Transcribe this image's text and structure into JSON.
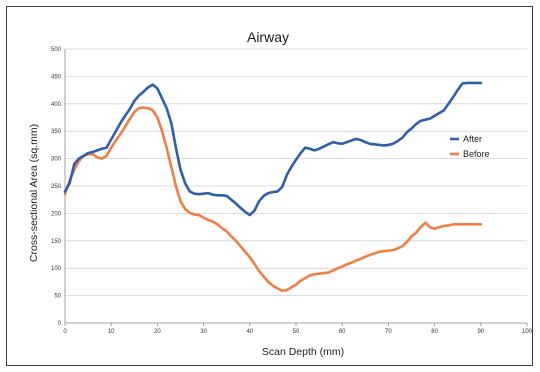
{
  "chart_data": {
    "type": "line",
    "title": "Airway",
    "xlabel": "Scan Depth (mm)",
    "ylabel": "Cross-sectional Area (sq.mm)",
    "xlim": [
      0,
      100
    ],
    "ylim": [
      0,
      500
    ],
    "xticks": [
      0,
      10,
      20,
      30,
      40,
      50,
      60,
      70,
      80,
      90,
      100
    ],
    "yticks": [
      0,
      50,
      100,
      150,
      200,
      250,
      300,
      350,
      400,
      450,
      500
    ],
    "grid": "horizontal",
    "legend_position": "right",
    "series": [
      {
        "name": "After",
        "color": "#2e5fa8",
        "x": [
          0,
          1,
          2,
          3,
          4,
          5,
          6,
          7,
          8,
          9,
          10,
          11,
          12,
          13,
          14,
          15,
          16,
          17,
          18,
          19,
          20,
          21,
          22,
          23,
          24,
          25,
          26,
          27,
          28,
          29,
          30,
          31,
          32,
          33,
          34,
          35,
          36,
          37,
          38,
          39,
          40,
          41,
          42,
          43,
          44,
          45,
          46,
          47,
          48,
          49,
          50,
          51,
          52,
          53,
          54,
          55,
          56,
          57,
          58,
          59,
          60,
          61,
          62,
          63,
          64,
          65,
          66,
          67,
          68,
          69,
          70,
          71,
          72,
          73,
          74,
          75,
          76,
          77,
          78,
          79,
          80,
          81,
          82,
          83,
          84,
          85,
          86,
          87,
          88,
          89,
          90
        ],
        "y": [
          240,
          255,
          290,
          300,
          305,
          310,
          312,
          315,
          318,
          320,
          335,
          350,
          365,
          378,
          390,
          405,
          415,
          422,
          430,
          435,
          428,
          410,
          392,
          365,
          320,
          280,
          255,
          240,
          236,
          235,
          236,
          237,
          234,
          233,
          233,
          232,
          225,
          218,
          210,
          203,
          197,
          205,
          222,
          232,
          237,
          239,
          240,
          248,
          270,
          285,
          298,
          310,
          320,
          318,
          315,
          318,
          322,
          326,
          330,
          328,
          327,
          330,
          333,
          336,
          334,
          330,
          327,
          326,
          325,
          324,
          325,
          327,
          332,
          338,
          348,
          355,
          363,
          369,
          371,
          373,
          378,
          383,
          388,
          400,
          412,
          425,
          437,
          438,
          438,
          438,
          438
        ]
      },
      {
        "name": "Before",
        "color": "#f07e45",
        "x": [
          0,
          1,
          2,
          3,
          4,
          5,
          6,
          7,
          8,
          9,
          10,
          11,
          12,
          13,
          14,
          15,
          16,
          17,
          18,
          19,
          20,
          21,
          22,
          23,
          24,
          25,
          26,
          27,
          28,
          29,
          30,
          31,
          32,
          33,
          34,
          35,
          36,
          37,
          38,
          39,
          40,
          41,
          42,
          43,
          44,
          45,
          46,
          47,
          48,
          49,
          50,
          51,
          52,
          53,
          54,
          55,
          56,
          57,
          58,
          59,
          60,
          61,
          62,
          63,
          64,
          65,
          66,
          67,
          68,
          69,
          70,
          71,
          72,
          73,
          74,
          75,
          76,
          77,
          78,
          79,
          80,
          81,
          82,
          83,
          84,
          85,
          86,
          87,
          88,
          89,
          90
        ],
        "y": [
          235,
          260,
          280,
          295,
          305,
          308,
          308,
          302,
          300,
          305,
          320,
          333,
          345,
          358,
          372,
          385,
          392,
          393,
          392,
          388,
          375,
          350,
          320,
          285,
          250,
          222,
          208,
          201,
          198,
          197,
          192,
          188,
          185,
          180,
          173,
          167,
          158,
          150,
          140,
          130,
          120,
          108,
          95,
          85,
          75,
          68,
          63,
          59,
          60,
          65,
          70,
          77,
          82,
          87,
          89,
          90,
          91,
          92,
          96,
          100,
          103,
          107,
          110,
          114,
          117,
          121,
          124,
          127,
          130,
          131,
          132,
          133,
          136,
          140,
          148,
          158,
          165,
          175,
          183,
          175,
          172,
          175,
          177,
          178,
          180,
          180,
          180,
          180,
          180,
          180,
          180
        ]
      }
    ]
  }
}
